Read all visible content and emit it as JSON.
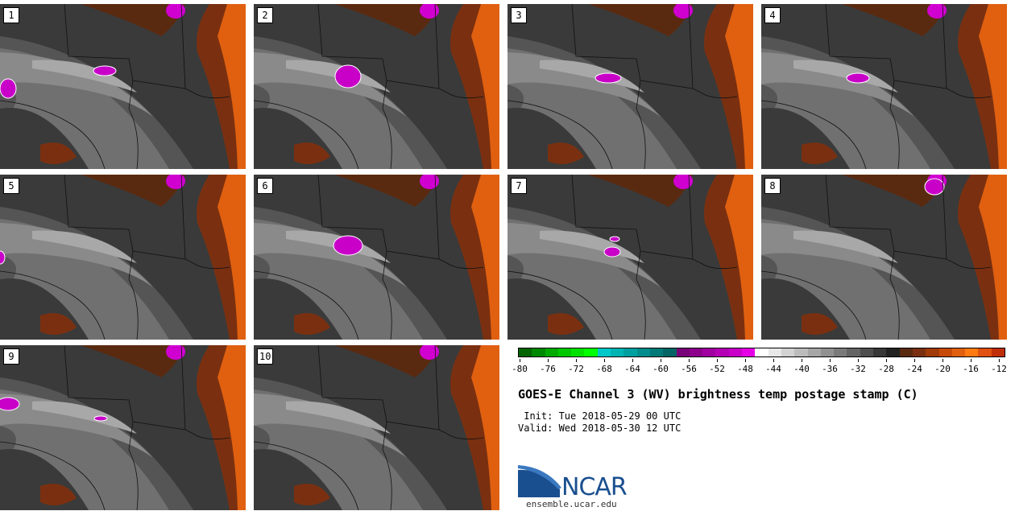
{
  "panels": [
    {
      "label": "1"
    },
    {
      "label": "2"
    },
    {
      "label": "3"
    },
    {
      "label": "4"
    },
    {
      "label": "5"
    },
    {
      "label": "6"
    },
    {
      "label": "7"
    },
    {
      "label": "8"
    },
    {
      "label": "9"
    },
    {
      "label": "10"
    }
  ],
  "colorbar": {
    "colors": [
      "#006400",
      "#008800",
      "#00aa00",
      "#00c800",
      "#00e100",
      "#00ff00",
      "#00c8c8",
      "#00b4b4",
      "#00a0a0",
      "#008c8c",
      "#007878",
      "#006464",
      "#780078",
      "#8c008c",
      "#a000a0",
      "#b400b4",
      "#c800c8",
      "#e600e6",
      "#ffffff",
      "#e8e8e8",
      "#d2d2d2",
      "#bcbcbc",
      "#a6a6a6",
      "#909090",
      "#7a7a7a",
      "#646464",
      "#4e4e4e",
      "#383838",
      "#222222",
      "#5a2a10",
      "#7a3010",
      "#a03a08",
      "#c84a08",
      "#e06010",
      "#ff7a10",
      "#e05010",
      "#c02e08"
    ],
    "tick_labels": [
      "-80",
      "-76",
      "-72",
      "-68",
      "-64",
      "-60",
      "-56",
      "-52",
      "-48",
      "-44",
      "-40",
      "-36",
      "-32",
      "-28",
      "-24",
      "-20",
      "-16",
      "-12"
    ]
  },
  "title": "GOES-E Channel 3 (WV) brightness temp postage stamp (C)",
  "init": " Init: Tue 2018-05-29 00 UTC",
  "valid": "Valid: Wed 2018-05-30 12 UTC",
  "logo_text": "NCAR",
  "url": "ensemble.ucar.edu"
}
